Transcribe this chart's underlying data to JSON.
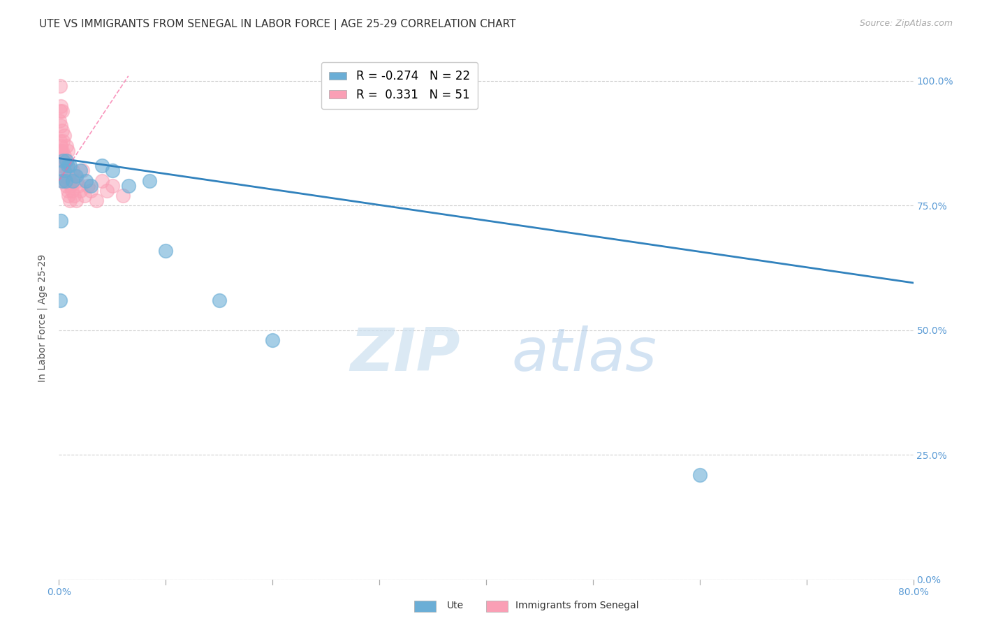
{
  "title": "UTE VS IMMIGRANTS FROM SENEGAL IN LABOR FORCE | AGE 25-29 CORRELATION CHART",
  "source_text": "Source: ZipAtlas.com",
  "ylabel": "In Labor Force | Age 25-29",
  "xlabel_ticks": [
    "0.0%",
    "",
    "",
    "",
    "",
    "",
    "",
    "",
    "80.0%"
  ],
  "ylabel_ticks": [
    "0.0%",
    "25.0%",
    "50.0%",
    "75.0%",
    "100.0%"
  ],
  "xlim": [
    0.0,
    0.8
  ],
  "ylim": [
    0.0,
    1.05
  ],
  "ute_scatter_x": [
    0.001,
    0.002,
    0.003,
    0.004,
    0.005,
    0.006,
    0.007,
    0.008,
    0.01,
    0.013,
    0.016,
    0.02,
    0.025,
    0.03,
    0.04,
    0.05,
    0.065,
    0.085,
    0.1,
    0.15,
    0.2,
    0.6
  ],
  "ute_scatter_y": [
    0.56,
    0.72,
    0.8,
    0.84,
    0.82,
    0.8,
    0.84,
    0.83,
    0.83,
    0.8,
    0.81,
    0.82,
    0.8,
    0.79,
    0.83,
    0.82,
    0.79,
    0.8,
    0.66,
    0.56,
    0.48,
    0.21
  ],
  "senegal_scatter_x": [
    0.0005,
    0.001,
    0.001,
    0.001,
    0.0015,
    0.002,
    0.002,
    0.002,
    0.002,
    0.0025,
    0.003,
    0.003,
    0.003,
    0.003,
    0.0035,
    0.004,
    0.004,
    0.004,
    0.005,
    0.005,
    0.005,
    0.006,
    0.006,
    0.007,
    0.007,
    0.007,
    0.008,
    0.008,
    0.008,
    0.009,
    0.009,
    0.01,
    0.01,
    0.011,
    0.012,
    0.013,
    0.014,
    0.015,
    0.016,
    0.017,
    0.018,
    0.02,
    0.022,
    0.024,
    0.027,
    0.03,
    0.035,
    0.04,
    0.045,
    0.05,
    0.06
  ],
  "senegal_scatter_y": [
    0.92,
    0.88,
    0.94,
    0.99,
    0.86,
    0.83,
    0.87,
    0.91,
    0.95,
    0.85,
    0.82,
    0.86,
    0.9,
    0.94,
    0.84,
    0.8,
    0.84,
    0.88,
    0.81,
    0.85,
    0.89,
    0.8,
    0.84,
    0.79,
    0.83,
    0.87,
    0.78,
    0.82,
    0.86,
    0.77,
    0.81,
    0.76,
    0.8,
    0.79,
    0.78,
    0.82,
    0.77,
    0.81,
    0.76,
    0.8,
    0.79,
    0.78,
    0.82,
    0.77,
    0.79,
    0.78,
    0.76,
    0.8,
    0.78,
    0.79,
    0.77
  ],
  "ute_color": "#6baed6",
  "senegal_color": "#fa9fb5",
  "ute_line_color": "#3182bd",
  "senegal_line_color": "#f768a1",
  "ute_R": -0.274,
  "ute_N": 22,
  "senegal_R": 0.331,
  "senegal_N": 51,
  "legend_label_ute": "Ute",
  "legend_label_senegal": "Immigrants from Senegal",
  "watermark_zip": "ZIP",
  "watermark_atlas": "atlas",
  "background_color": "#ffffff",
  "grid_color": "#cccccc",
  "title_fontsize": 11,
  "axis_tick_color": "#5b9bd5",
  "ylabel_fontsize": 10,
  "ute_line_x0": 0.0,
  "ute_line_x1": 0.8,
  "ute_line_y0": 0.845,
  "ute_line_y1": 0.595,
  "sen_line_x0": 0.0,
  "sen_line_x1": 0.065,
  "sen_line_y0": 0.8,
  "sen_line_y1": 1.01
}
